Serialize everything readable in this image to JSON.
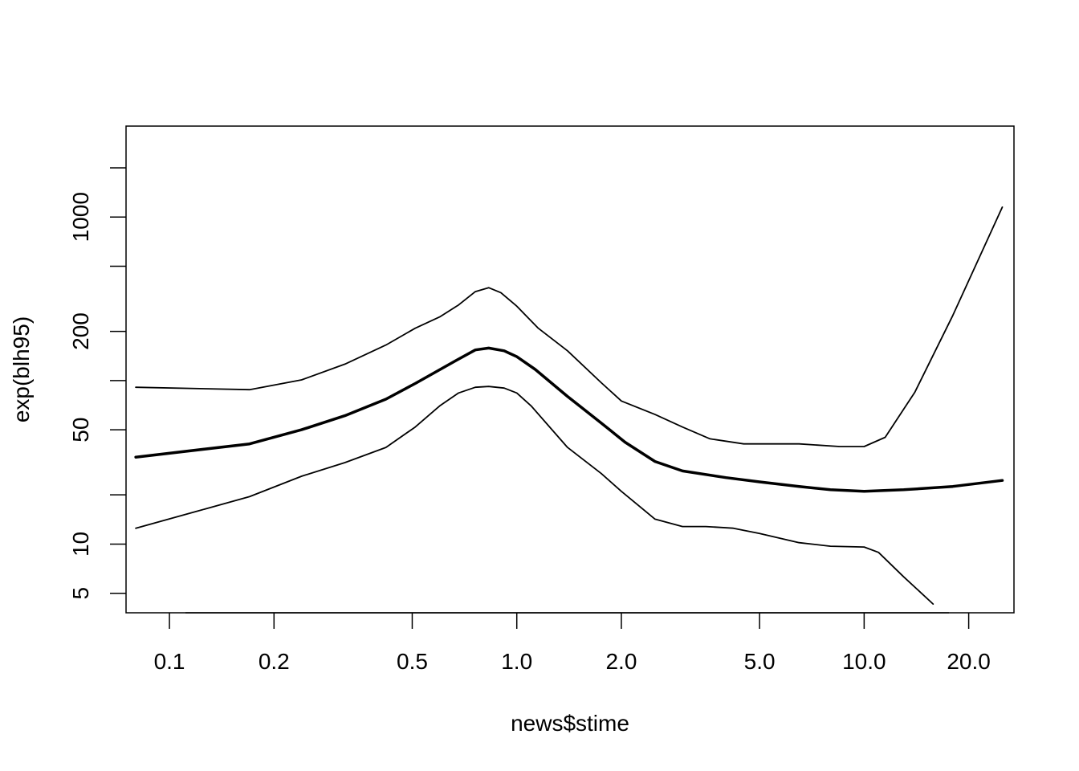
{
  "chart_data": {
    "type": "line",
    "title": "",
    "xlabel": "news$stime",
    "ylabel": "exp(blh95)",
    "x_scale": "log",
    "y_scale": "log",
    "xlim": [
      0.075,
      27
    ],
    "ylim": [
      3.8,
      3600
    ],
    "x_ticks": [
      {
        "value": 0.1,
        "label": "0.1"
      },
      {
        "value": 0.2,
        "label": "0.2"
      },
      {
        "value": 0.5,
        "label": "0.5"
      },
      {
        "value": 1.0,
        "label": "1.0"
      },
      {
        "value": 2.0,
        "label": "2.0"
      },
      {
        "value": 5.0,
        "label": "5.0"
      },
      {
        "value": 10.0,
        "label": "10.0"
      },
      {
        "value": 20.0,
        "label": "20.0"
      }
    ],
    "y_ticks": [
      {
        "value": 5,
        "label": "5"
      },
      {
        "value": 10,
        "label": "10"
      },
      {
        "value": 20,
        "label": ""
      },
      {
        "value": 50,
        "label": "50"
      },
      {
        "value": 100,
        "label": ""
      },
      {
        "value": 200,
        "label": "200"
      },
      {
        "value": 500,
        "label": ""
      },
      {
        "value": 1000,
        "label": "1000"
      },
      {
        "value": 2000,
        "label": ""
      }
    ],
    "grid": false,
    "legend": "none",
    "series": [
      {
        "role": "estimate",
        "line_width": 3.5,
        "color": "#000000",
        "x": [
          0.08,
          0.17,
          0.24,
          0.32,
          0.42,
          0.51,
          0.67,
          0.76,
          0.83,
          0.92,
          1.0,
          1.13,
          1.4,
          1.75,
          2.05,
          2.5,
          3.0,
          4.0,
          5.0,
          6.5,
          8.0,
          10.0,
          13.0,
          18.0,
          25.0
        ],
        "y": [
          34,
          41,
          50,
          61,
          77,
          96,
          133,
          154,
          158,
          152,
          140,
          117,
          80,
          55,
          42,
          32,
          28,
          25.5,
          24,
          22.5,
          21.5,
          21,
          21.5,
          22.5,
          24.5
        ]
      },
      {
        "role": "upper-bound",
        "line_width": 1.8,
        "color": "#000000",
        "x": [
          0.08,
          0.17,
          0.24,
          0.32,
          0.42,
          0.51,
          0.6,
          0.68,
          0.76,
          0.83,
          0.9,
          1.0,
          1.15,
          1.4,
          1.75,
          2.0,
          2.5,
          3.0,
          3.6,
          4.5,
          6.5,
          8.5,
          10.0,
          11.5,
          14.0,
          18.0,
          25.0
        ],
        "y": [
          91,
          88,
          101,
          126,
          165,
          209,
          245,
          290,
          350,
          370,
          345,
          285,
          210,
          152,
          97,
          75,
          62,
          52,
          44,
          41,
          41,
          39.5,
          39.5,
          45,
          85,
          250,
          1150
        ]
      },
      {
        "role": "lower-bound",
        "line_width": 1.8,
        "color": "#000000",
        "x": [
          0.08,
          0.17,
          0.24,
          0.32,
          0.42,
          0.51,
          0.6,
          0.68,
          0.76,
          0.83,
          0.92,
          1.0,
          1.1,
          1.4,
          1.75,
          2.0,
          2.5,
          3.0,
          3.5,
          4.2,
          5.0,
          6.5,
          8.0,
          10.0,
          11.0,
          13.0,
          15.8
        ],
        "y": [
          12.5,
          19.5,
          26,
          31.5,
          39,
          52,
          70,
          84,
          91,
          92,
          90,
          84,
          70,
          39,
          27,
          21,
          14.2,
          12.8,
          12.8,
          12.5,
          11.6,
          10.2,
          9.7,
          9.6,
          8.9,
          6.3,
          4.3
        ]
      }
    ]
  }
}
